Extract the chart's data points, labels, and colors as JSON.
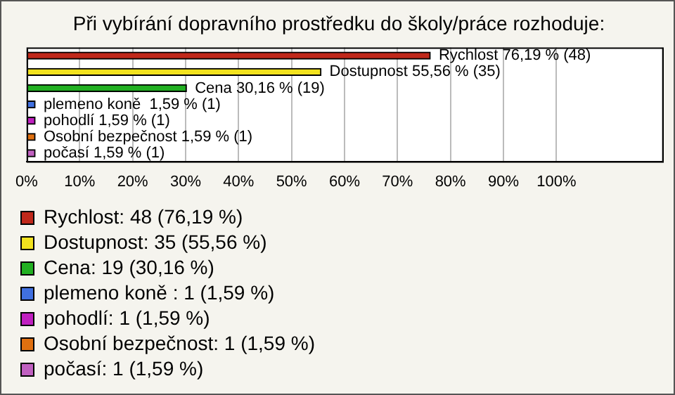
{
  "chart_data": {
    "type": "bar",
    "orientation": "horizontal",
    "stacked": true,
    "title": "Při vybírání dopravního prostředku do školy/práce rozhoduje:",
    "categories": [
      null,
      null,
      null,
      null,
      null,
      null,
      null
    ],
    "series": [
      {
        "name": "Rychlost: 48 (76,19 %)",
        "color": "#c0281a",
        "values": [
          76.19,
          null,
          null,
          null,
          null,
          null,
          null
        ],
        "value_labels": [
          "Rychlost 76,19 % (48)",
          null,
          null,
          null,
          null,
          null,
          null
        ]
      },
      {
        "name": "Dostupnost: 35 (55,56 %)",
        "color": "#f2e21e",
        "values": [
          null,
          55.56,
          null,
          null,
          null,
          null,
          null
        ],
        "value_labels": [
          null,
          "Dostupnost 55,56 % (35)",
          null,
          null,
          null,
          null,
          null
        ]
      },
      {
        "name": "Cena: 19 (30,16 %)",
        "color": "#22b022",
        "values": [
          null,
          null,
          30.16,
          null,
          null,
          null,
          null
        ],
        "value_labels": [
          null,
          null,
          "Cena 30,16 % (19)",
          null,
          null,
          null,
          null
        ]
      },
      {
        "name": "plemeno koně : 1 (1,59 %)",
        "color": "#4070e0",
        "values": [
          null,
          null,
          null,
          1.59,
          null,
          null,
          null
        ],
        "value_labels": [
          null,
          null,
          null,
          "plemeno koně  1,59 % (1)",
          null,
          null,
          null
        ]
      },
      {
        "name": "pohodlí: 1 (1,59 %)",
        "color": "#c020c0",
        "values": [
          null,
          null,
          null,
          null,
          1.59,
          null,
          null
        ],
        "value_labels": [
          null,
          null,
          null,
          null,
          "pohodlí 1,59 % (1)",
          null,
          null
        ]
      },
      {
        "name": "Osobní bezpečnost: 1 (1,59 %)",
        "color": "#e07010",
        "values": [
          null,
          null,
          null,
          null,
          null,
          1.59,
          null
        ],
        "value_labels": [
          null,
          null,
          null,
          null,
          null,
          "Osobní bezpečnost 1,59 % (1)",
          null
        ]
      },
      {
        "name": "počasí: 1 (1,59 %)",
        "color": "#c060c0",
        "values": [
          null,
          null,
          null,
          null,
          null,
          null,
          1.59
        ],
        "value_labels": [
          null,
          null,
          null,
          null,
          null,
          null,
          "počasí 1,59 % (1)"
        ]
      }
    ],
    "xlim": [
      0,
      120
    ],
    "xticks": [
      {
        "value": 0,
        "label": "0%"
      },
      {
        "value": 10,
        "label": "10%"
      },
      {
        "value": 20,
        "label": "20%"
      },
      {
        "value": 30,
        "label": "30%"
      },
      {
        "value": 40,
        "label": "40%"
      },
      {
        "value": 50,
        "label": "50%"
      },
      {
        "value": 60,
        "label": "60%"
      },
      {
        "value": 70,
        "label": "70%"
      },
      {
        "value": 80,
        "label": "80%"
      },
      {
        "value": 90,
        "label": "90%"
      },
      {
        "value": 100,
        "label": "100%"
      },
      {
        "value": 120,
        "label": null
      }
    ],
    "grid": "x",
    "legend": "bottom",
    "tick_labels": "x"
  }
}
